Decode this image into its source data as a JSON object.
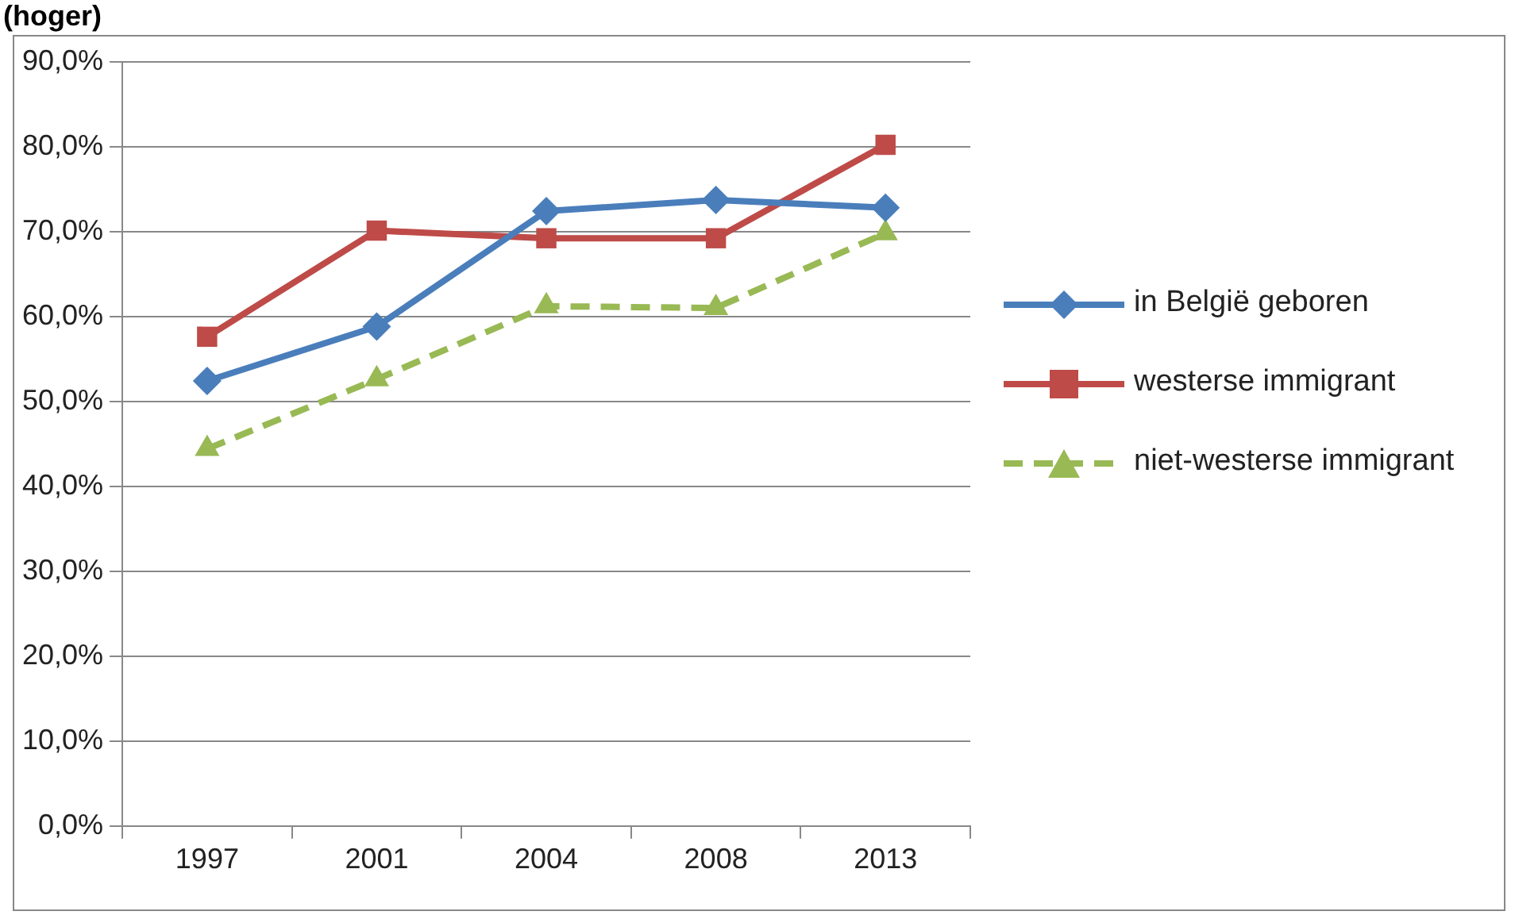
{
  "chart_data": {
    "type": "line",
    "title": "(hoger)",
    "categories": [
      "1997",
      "2001",
      "2004",
      "2008",
      "2013"
    ],
    "series": [
      {
        "name": "in België geboren",
        "color": "#4a7ebb",
        "values": [
          52.4,
          58.8,
          72.4,
          73.7,
          72.8
        ],
        "marker": "diamond",
        "line_style": "solid"
      },
      {
        "name": "westerse immigrant",
        "color": "#be4b48",
        "values": [
          57.6,
          70.1,
          69.2,
          69.2,
          80.2
        ],
        "marker": "square",
        "line_style": "solid"
      },
      {
        "name": "niet-westerse immigrant",
        "color": "#98b954",
        "values": [
          44.4,
          52.6,
          61.2,
          61.0,
          69.8
        ],
        "marker": "triangle",
        "line_style": "dashed"
      }
    ],
    "ylim": [
      0,
      90
    ],
    "yticks": [
      {
        "value": 0,
        "label": "0,0%"
      },
      {
        "value": 10,
        "label": "10,0%"
      },
      {
        "value": 20,
        "label": "20,0%"
      },
      {
        "value": 30,
        "label": "30,0%"
      },
      {
        "value": 40,
        "label": "40,0%"
      },
      {
        "value": 50,
        "label": "50,0%"
      },
      {
        "value": 60,
        "label": "60,0%"
      },
      {
        "value": 70,
        "label": "70,0%"
      },
      {
        "value": 80,
        "label": "80,0%"
      },
      {
        "value": 90,
        "label": "90,0%"
      }
    ],
    "grid": "y",
    "legend": "right"
  }
}
